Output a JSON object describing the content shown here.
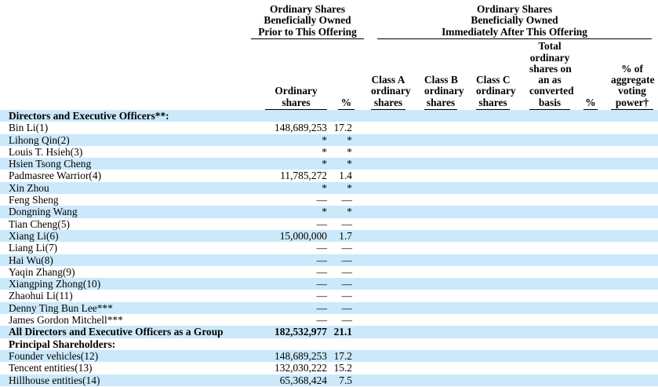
{
  "page": {
    "background_color": "#ffffff",
    "stripe_color": "#cbe9fb",
    "text_color": "#000000"
  },
  "table": {
    "group_headers": {
      "prior": {
        "lines": [
          "Ordinary Shares",
          "Beneficially Owned",
          "Prior to This Offering"
        ]
      },
      "after": {
        "lines": [
          "Ordinary Shares",
          "Beneficially Owned",
          "Immediately After This Offering"
        ]
      }
    },
    "columns": {
      "ordinary_shares": {
        "lines": [
          "Ordinary",
          "shares"
        ]
      },
      "pct_prior": {
        "lines": [
          "%"
        ]
      },
      "class_a": {
        "lines": [
          "Class A",
          "ordinary",
          "shares"
        ]
      },
      "class_b": {
        "lines": [
          "Class B",
          "ordinary",
          "shares"
        ]
      },
      "class_c": {
        "lines": [
          "Class C",
          "ordinary",
          "shares"
        ]
      },
      "total_converted": {
        "lines": [
          "Total",
          "ordinary",
          "shares on",
          "an as",
          "converted",
          "basis"
        ]
      },
      "pct_after": {
        "lines": [
          "%"
        ]
      },
      "voting_power": {
        "lines": [
          "% of",
          "aggregate",
          "voting",
          "power†"
        ]
      }
    },
    "rows": [
      {
        "name": "Directors and Executive Officers**:",
        "bold": true,
        "ordinary_shares": "",
        "pct_prior": ""
      },
      {
        "name": "Bin Li(1)",
        "ordinary_shares": "148,689,253",
        "pct_prior": "17.2"
      },
      {
        "name": "Lihong Qin(2)",
        "ordinary_shares": "*",
        "pct_prior": "*"
      },
      {
        "name": "Louis T. Hsieh(3)",
        "ordinary_shares": "*",
        "pct_prior": "*"
      },
      {
        "name": "Hsien Tsong Cheng",
        "ordinary_shares": "*",
        "pct_prior": "*"
      },
      {
        "name": "Padmasree Warrior(4)",
        "ordinary_shares": "11,785,272",
        "pct_prior": "1.4"
      },
      {
        "name": "Xin Zhou",
        "ordinary_shares": "*",
        "pct_prior": "*"
      },
      {
        "name": "Feng Sheng",
        "ordinary_shares": "—",
        "pct_prior": "—"
      },
      {
        "name": "Dongning Wang",
        "ordinary_shares": "*",
        "pct_prior": "*"
      },
      {
        "name": "Tian Cheng(5)",
        "ordinary_shares": "—",
        "pct_prior": "—"
      },
      {
        "name": "Xiang Li(6)",
        "ordinary_shares": "15,000,000",
        "pct_prior": "1.7"
      },
      {
        "name": "Liang Li(7)",
        "ordinary_shares": "—",
        "pct_prior": "—"
      },
      {
        "name": "Hai Wu(8)",
        "ordinary_shares": "—",
        "pct_prior": "—"
      },
      {
        "name": "Yaqin Zhang(9)",
        "ordinary_shares": "—",
        "pct_prior": "—"
      },
      {
        "name": "Xiangping Zhong(10)",
        "ordinary_shares": "—",
        "pct_prior": "—"
      },
      {
        "name": "Zhaohui Li(11)",
        "ordinary_shares": "—",
        "pct_prior": "—"
      },
      {
        "name": "Denny Ting Bun Lee***",
        "ordinary_shares": "—",
        "pct_prior": "—"
      },
      {
        "name": "James Gordon Mitchell***",
        "ordinary_shares": "—",
        "pct_prior": "—"
      },
      {
        "name": "All Directors and Executive Officers as a Group",
        "bold": true,
        "ordinary_shares": "182,532,977",
        "pct_prior": "21.1"
      },
      {
        "name": "Principal Shareholders:",
        "bold": true,
        "ordinary_shares": "",
        "pct_prior": ""
      },
      {
        "name": "Founder vehicles(12)",
        "ordinary_shares": "148,689,253",
        "pct_prior": "17.2"
      },
      {
        "name": "Tencent entities(13)",
        "ordinary_shares": "132,030,222",
        "pct_prior": "15.2"
      },
      {
        "name": "Hillhouse entities(14)",
        "ordinary_shares": "65,368,424",
        "pct_prior": "7.5"
      }
    ]
  }
}
